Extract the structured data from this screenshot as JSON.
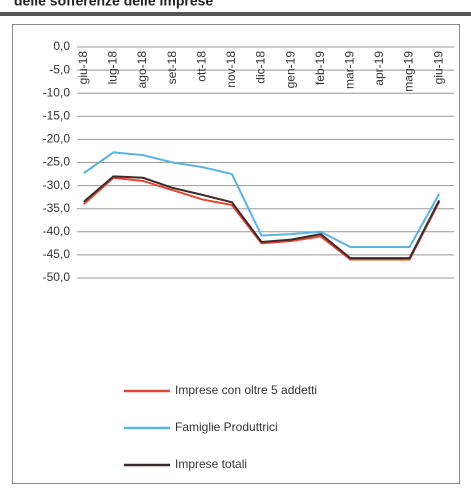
{
  "chart_data": {
    "type": "line",
    "title": "delle sofferenze delle imprese",
    "categories": [
      "giu-18",
      "lug-18",
      "ago-18",
      "set-18",
      "ott-18",
      "nov-18",
      "dic-18",
      "gen-19",
      "feb-19",
      "mar-19",
      "apr-19",
      "mag-19",
      "giu-19"
    ],
    "series": [
      {
        "name": "Imprese con oltre 5 addetti",
        "color": "#e8442e",
        "values": [
          -34,
          -28.3,
          -29,
          -31,
          -33,
          -34.2,
          -42.5,
          -42,
          -41,
          -46,
          -46,
          -46,
          -33.5
        ]
      },
      {
        "name": "Famiglie Produttrici",
        "color": "#5ab4e2",
        "values": [
          -27.3,
          -22.8,
          -23.4,
          -25,
          -26,
          -27.5,
          -40.8,
          -40.5,
          -40,
          -43.3,
          -43.3,
          -43.3,
          -31.8
        ]
      },
      {
        "name": "Imprese totali",
        "color": "#3b2b2b",
        "values": [
          -33.5,
          -28,
          -28.3,
          -30.5,
          -32,
          -33.6,
          -42.2,
          -41.7,
          -40.5,
          -45.7,
          -45.7,
          -45.7,
          -33.2
        ]
      }
    ],
    "ylim": [
      -50,
      0
    ],
    "yticks": [
      {
        "value": 0,
        "label": "0,0"
      },
      {
        "value": -5,
        "label": "-5,0"
      },
      {
        "value": -10,
        "label": "-10,0"
      },
      {
        "value": -15,
        "label": "-15,0"
      },
      {
        "value": -20,
        "label": "-20,0"
      },
      {
        "value": -25,
        "label": "-25,0"
      },
      {
        "value": -30,
        "label": "-30,0"
      },
      {
        "value": -35,
        "label": "-35,0"
      },
      {
        "value": -40,
        "label": "-40,0"
      },
      {
        "value": -45,
        "label": "-45,0"
      },
      {
        "value": -50,
        "label": "-50,0"
      }
    ],
    "grid": true,
    "legend": "bottom"
  }
}
